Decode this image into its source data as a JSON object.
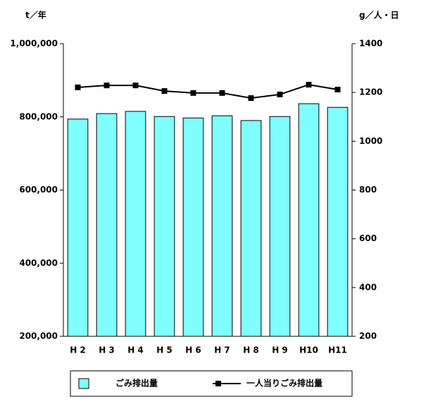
{
  "chart_data": {
    "type": "bar_line",
    "y_unit_label": "t／年",
    "y2_unit_label": "g／人・日",
    "categories": [
      "H 2",
      "H 3",
      "H 4",
      "H 5",
      "H 6",
      "H 7",
      "H 8",
      "H 9",
      "H10",
      "H11"
    ],
    "series": [
      {
        "name": "ごみ排出量",
        "type": "bar",
        "color": "#80ffff",
        "values": [
          794000,
          809000,
          815000,
          801000,
          797000,
          803000,
          790000,
          801000,
          836000,
          826000
        ]
      },
      {
        "name": "一人当りごみ排出量",
        "type": "line",
        "axis": "y2",
        "color": "#000000",
        "values": [
          1221,
          1229,
          1229,
          1206,
          1198,
          1198,
          1177,
          1192,
          1232,
          1212
        ]
      }
    ],
    "ylim": [
      200000,
      1000000
    ],
    "yticks": [
      {
        "value": 200000,
        "label": "200,000"
      },
      {
        "value": 400000,
        "label": "400,000"
      },
      {
        "value": 600000,
        "label": "600,000"
      },
      {
        "value": 800000,
        "label": "800,000"
      },
      {
        "value": 1000000,
        "label": "1,000,000"
      }
    ],
    "y2lim": [
      200,
      1400
    ],
    "y2ticks": [
      200,
      400,
      600,
      800,
      1000,
      1200,
      1400
    ],
    "grid": false
  }
}
